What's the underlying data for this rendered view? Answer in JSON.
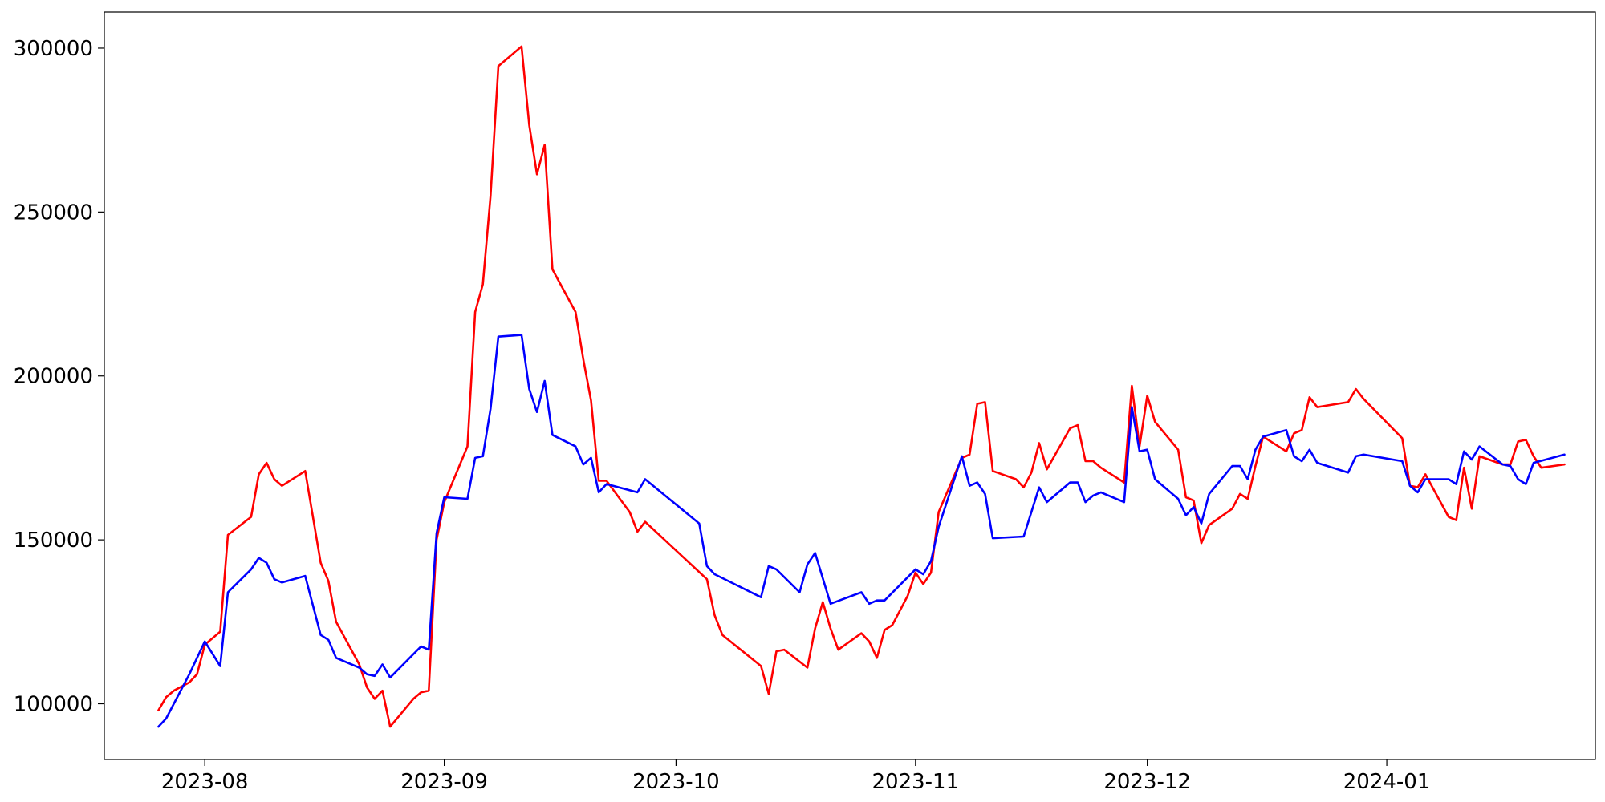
{
  "chart_data": {
    "type": "line",
    "title": "",
    "xlabel": "",
    "ylabel": "",
    "x_axis": "date",
    "xlim": [
      "2023-07-19",
      "2024-01-28"
    ],
    "ylim": [
      83000,
      311000
    ],
    "grid": false,
    "legend": "none",
    "x_ticks": [
      {
        "date": "2023-08-01",
        "label": "2023-08"
      },
      {
        "date": "2023-09-01",
        "label": "2023-09"
      },
      {
        "date": "2023-10-01",
        "label": "2023-10"
      },
      {
        "date": "2023-11-01",
        "label": "2023-11"
      },
      {
        "date": "2023-12-01",
        "label": "2023-12"
      },
      {
        "date": "2024-01-01",
        "label": "2024-01"
      }
    ],
    "y_ticks": [
      {
        "value": 100000,
        "label": "100000"
      },
      {
        "value": 150000,
        "label": "150000"
      },
      {
        "value": 200000,
        "label": "200000"
      },
      {
        "value": 250000,
        "label": "250000"
      },
      {
        "value": 300000,
        "label": "300000"
      }
    ],
    "series": [
      {
        "color": "#ff0000",
        "points": [
          [
            "2023-07-26",
            98000
          ],
          [
            "2023-07-27",
            102000
          ],
          [
            "2023-07-28",
            104000
          ],
          [
            "2023-07-30",
            106500
          ],
          [
            "2023-07-31",
            109000
          ],
          [
            "2023-08-01",
            118000
          ],
          [
            "2023-08-02",
            120000
          ],
          [
            "2023-08-03",
            122000
          ],
          [
            "2023-08-04",
            151500
          ],
          [
            "2023-08-07",
            157000
          ],
          [
            "2023-08-08",
            170000
          ],
          [
            "2023-08-09",
            173500
          ],
          [
            "2023-08-10",
            168500
          ],
          [
            "2023-08-11",
            166500
          ],
          [
            "2023-08-14",
            171000
          ],
          [
            "2023-08-16",
            143000
          ],
          [
            "2023-08-17",
            137500
          ],
          [
            "2023-08-18",
            125000
          ],
          [
            "2023-08-21",
            112000
          ],
          [
            "2023-08-22",
            105000
          ],
          [
            "2023-08-23",
            101500
          ],
          [
            "2023-08-24",
            104000
          ],
          [
            "2023-08-25",
            93000
          ],
          [
            "2023-08-28",
            101500
          ],
          [
            "2023-08-29",
            103500
          ],
          [
            "2023-08-30",
            104000
          ],
          [
            "2023-08-31",
            150000
          ],
          [
            "2023-09-01",
            161500
          ],
          [
            "2023-09-04",
            178500
          ],
          [
            "2023-09-05",
            219500
          ],
          [
            "2023-09-06",
            228000
          ],
          [
            "2023-09-07",
            255000
          ],
          [
            "2023-09-08",
            294500
          ],
          [
            "2023-09-11",
            300500
          ],
          [
            "2023-09-12",
            276500
          ],
          [
            "2023-09-13",
            261500
          ],
          [
            "2023-09-14",
            270500
          ],
          [
            "2023-09-15",
            232500
          ],
          [
            "2023-09-18",
            219500
          ],
          [
            "2023-09-19",
            205000
          ],
          [
            "2023-09-20",
            192500
          ],
          [
            "2023-09-21",
            168000
          ],
          [
            "2023-09-22",
            168000
          ],
          [
            "2023-09-25",
            158500
          ],
          [
            "2023-09-26",
            152500
          ],
          [
            "2023-09-27",
            155500
          ],
          [
            "2023-10-05",
            138000
          ],
          [
            "2023-10-06",
            127000
          ],
          [
            "2023-10-07",
            121000
          ],
          [
            "2023-10-12",
            111500
          ],
          [
            "2023-10-13",
            103000
          ],
          [
            "2023-10-14",
            116000
          ],
          [
            "2023-10-15",
            116500
          ],
          [
            "2023-10-18",
            111000
          ],
          [
            "2023-10-19",
            123000
          ],
          [
            "2023-10-20",
            131000
          ],
          [
            "2023-10-21",
            123000
          ],
          [
            "2023-10-22",
            116500
          ],
          [
            "2023-10-25",
            121500
          ],
          [
            "2023-10-26",
            119000
          ],
          [
            "2023-10-27",
            114000
          ],
          [
            "2023-10-28",
            122500
          ],
          [
            "2023-10-29",
            124000
          ],
          [
            "2023-10-31",
            133000
          ],
          [
            "2023-11-01",
            140000
          ],
          [
            "2023-11-02",
            136500
          ],
          [
            "2023-11-03",
            140000
          ],
          [
            "2023-11-04",
            158500
          ],
          [
            "2023-11-07",
            175000
          ],
          [
            "2023-11-08",
            176000
          ],
          [
            "2023-11-09",
            191500
          ],
          [
            "2023-11-10",
            192000
          ],
          [
            "2023-11-11",
            171000
          ],
          [
            "2023-11-14",
            168500
          ],
          [
            "2023-11-15",
            166000
          ],
          [
            "2023-11-16",
            170500
          ],
          [
            "2023-11-17",
            179500
          ],
          [
            "2023-11-18",
            171500
          ],
          [
            "2023-11-21",
            184000
          ],
          [
            "2023-11-22",
            185000
          ],
          [
            "2023-11-23",
            174000
          ],
          [
            "2023-11-24",
            174000
          ],
          [
            "2023-11-25",
            172000
          ],
          [
            "2023-11-28",
            167500
          ],
          [
            "2023-11-29",
            197000
          ],
          [
            "2023-11-30",
            178500
          ],
          [
            "2023-12-01",
            194000
          ],
          [
            "2023-12-02",
            186000
          ],
          [
            "2023-12-05",
            177500
          ],
          [
            "2023-12-06",
            163000
          ],
          [
            "2023-12-07",
            162000
          ],
          [
            "2023-12-08",
            149000
          ],
          [
            "2023-12-09",
            154500
          ],
          [
            "2023-12-12",
            159500
          ],
          [
            "2023-12-13",
            164000
          ],
          [
            "2023-12-14",
            162500
          ],
          [
            "2023-12-15",
            172500
          ],
          [
            "2023-12-16",
            181500
          ],
          [
            "2023-12-19",
            177000
          ],
          [
            "2023-12-20",
            182500
          ],
          [
            "2023-12-21",
            183500
          ],
          [
            "2023-12-22",
            193500
          ],
          [
            "2023-12-23",
            190500
          ],
          [
            "2023-12-27",
            192000
          ],
          [
            "2023-12-28",
            196000
          ],
          [
            "2023-12-29",
            193000
          ],
          [
            "2024-01-03",
            181000
          ],
          [
            "2024-01-04",
            166500
          ],
          [
            "2024-01-05",
            166000
          ],
          [
            "2024-01-06",
            170000
          ],
          [
            "2024-01-09",
            157000
          ],
          [
            "2024-01-10",
            156000
          ],
          [
            "2024-01-11",
            172000
          ],
          [
            "2024-01-12",
            159500
          ],
          [
            "2024-01-13",
            175500
          ],
          [
            "2024-01-16",
            173000
          ],
          [
            "2024-01-17",
            173000
          ],
          [
            "2024-01-18",
            180000
          ],
          [
            "2024-01-19",
            180500
          ],
          [
            "2024-01-20",
            175500
          ],
          [
            "2024-01-21",
            172000
          ],
          [
            "2024-01-24",
            173000
          ]
        ]
      },
      {
        "color": "#0000ff",
        "points": [
          [
            "2023-07-26",
            93000
          ],
          [
            "2023-07-27",
            95500
          ],
          [
            "2023-07-28",
            100000
          ],
          [
            "2023-07-30",
            109000
          ],
          [
            "2023-08-01",
            119000
          ],
          [
            "2023-08-03",
            111500
          ],
          [
            "2023-08-04",
            134000
          ],
          [
            "2023-08-07",
            141000
          ],
          [
            "2023-08-08",
            144500
          ],
          [
            "2023-08-09",
            143000
          ],
          [
            "2023-08-10",
            138000
          ],
          [
            "2023-08-11",
            137000
          ],
          [
            "2023-08-14",
            139000
          ],
          [
            "2023-08-16",
            121000
          ],
          [
            "2023-08-17",
            119500
          ],
          [
            "2023-08-18",
            114000
          ],
          [
            "2023-08-21",
            111000
          ],
          [
            "2023-08-22",
            109000
          ],
          [
            "2023-08-23",
            108500
          ],
          [
            "2023-08-24",
            112000
          ],
          [
            "2023-08-25",
            108000
          ],
          [
            "2023-08-29",
            117500
          ],
          [
            "2023-08-30",
            116500
          ],
          [
            "2023-08-31",
            152000
          ],
          [
            "2023-09-01",
            163000
          ],
          [
            "2023-09-04",
            162500
          ],
          [
            "2023-09-05",
            175000
          ],
          [
            "2023-09-06",
            175500
          ],
          [
            "2023-09-07",
            190000
          ],
          [
            "2023-09-08",
            212000
          ],
          [
            "2023-09-11",
            212500
          ],
          [
            "2023-09-12",
            196000
          ],
          [
            "2023-09-13",
            189000
          ],
          [
            "2023-09-14",
            198500
          ],
          [
            "2023-09-15",
            182000
          ],
          [
            "2023-09-18",
            178500
          ],
          [
            "2023-09-19",
            173000
          ],
          [
            "2023-09-20",
            175000
          ],
          [
            "2023-09-21",
            164500
          ],
          [
            "2023-09-22",
            167000
          ],
          [
            "2023-09-26",
            164500
          ],
          [
            "2023-09-27",
            168500
          ],
          [
            "2023-10-04",
            155000
          ],
          [
            "2023-10-05",
            142000
          ],
          [
            "2023-10-06",
            139500
          ],
          [
            "2023-10-12",
            132500
          ],
          [
            "2023-10-13",
            142000
          ],
          [
            "2023-10-14",
            141000
          ],
          [
            "2023-10-17",
            134000
          ],
          [
            "2023-10-18",
            142500
          ],
          [
            "2023-10-19",
            146000
          ],
          [
            "2023-10-21",
            130500
          ],
          [
            "2023-10-25",
            134000
          ],
          [
            "2023-10-26",
            130500
          ],
          [
            "2023-10-27",
            131500
          ],
          [
            "2023-10-28",
            131500
          ],
          [
            "2023-11-01",
            141000
          ],
          [
            "2023-11-02",
            139500
          ],
          [
            "2023-11-03",
            143500
          ],
          [
            "2023-11-04",
            154000
          ],
          [
            "2023-11-07",
            175500
          ],
          [
            "2023-11-08",
            166500
          ],
          [
            "2023-11-09",
            167500
          ],
          [
            "2023-11-10",
            164000
          ],
          [
            "2023-11-11",
            150500
          ],
          [
            "2023-11-15",
            151000
          ],
          [
            "2023-11-17",
            166000
          ],
          [
            "2023-11-18",
            161500
          ],
          [
            "2023-11-21",
            167500
          ],
          [
            "2023-11-22",
            167500
          ],
          [
            "2023-11-23",
            161500
          ],
          [
            "2023-11-24",
            163500
          ],
          [
            "2023-11-25",
            164500
          ],
          [
            "2023-11-28",
            161500
          ],
          [
            "2023-11-29",
            190500
          ],
          [
            "2023-11-30",
            177000
          ],
          [
            "2023-12-01",
            177500
          ],
          [
            "2023-12-02",
            168500
          ],
          [
            "2023-12-05",
            162500
          ],
          [
            "2023-12-06",
            157500
          ],
          [
            "2023-12-07",
            160000
          ],
          [
            "2023-12-08",
            155000
          ],
          [
            "2023-12-09",
            164000
          ],
          [
            "2023-12-12",
            172500
          ],
          [
            "2023-12-13",
            172500
          ],
          [
            "2023-12-14",
            168500
          ],
          [
            "2023-12-15",
            177500
          ],
          [
            "2023-12-16",
            181500
          ],
          [
            "2023-12-19",
            183500
          ],
          [
            "2023-12-20",
            175500
          ],
          [
            "2023-12-21",
            174000
          ],
          [
            "2023-12-22",
            177500
          ],
          [
            "2023-12-23",
            173500
          ],
          [
            "2023-12-27",
            170500
          ],
          [
            "2023-12-28",
            175500
          ],
          [
            "2023-12-29",
            176000
          ],
          [
            "2024-01-03",
            174000
          ],
          [
            "2024-01-04",
            166500
          ],
          [
            "2024-01-05",
            164500
          ],
          [
            "2024-01-06",
            168500
          ],
          [
            "2024-01-09",
            168500
          ],
          [
            "2024-01-10",
            167000
          ],
          [
            "2024-01-11",
            177000
          ],
          [
            "2024-01-12",
            174500
          ],
          [
            "2024-01-13",
            178500
          ],
          [
            "2024-01-16",
            173000
          ],
          [
            "2024-01-17",
            172500
          ],
          [
            "2024-01-18",
            168500
          ],
          [
            "2024-01-19",
            167000
          ],
          [
            "2024-01-20",
            173500
          ],
          [
            "2024-01-24",
            176000
          ]
        ]
      }
    ]
  }
}
